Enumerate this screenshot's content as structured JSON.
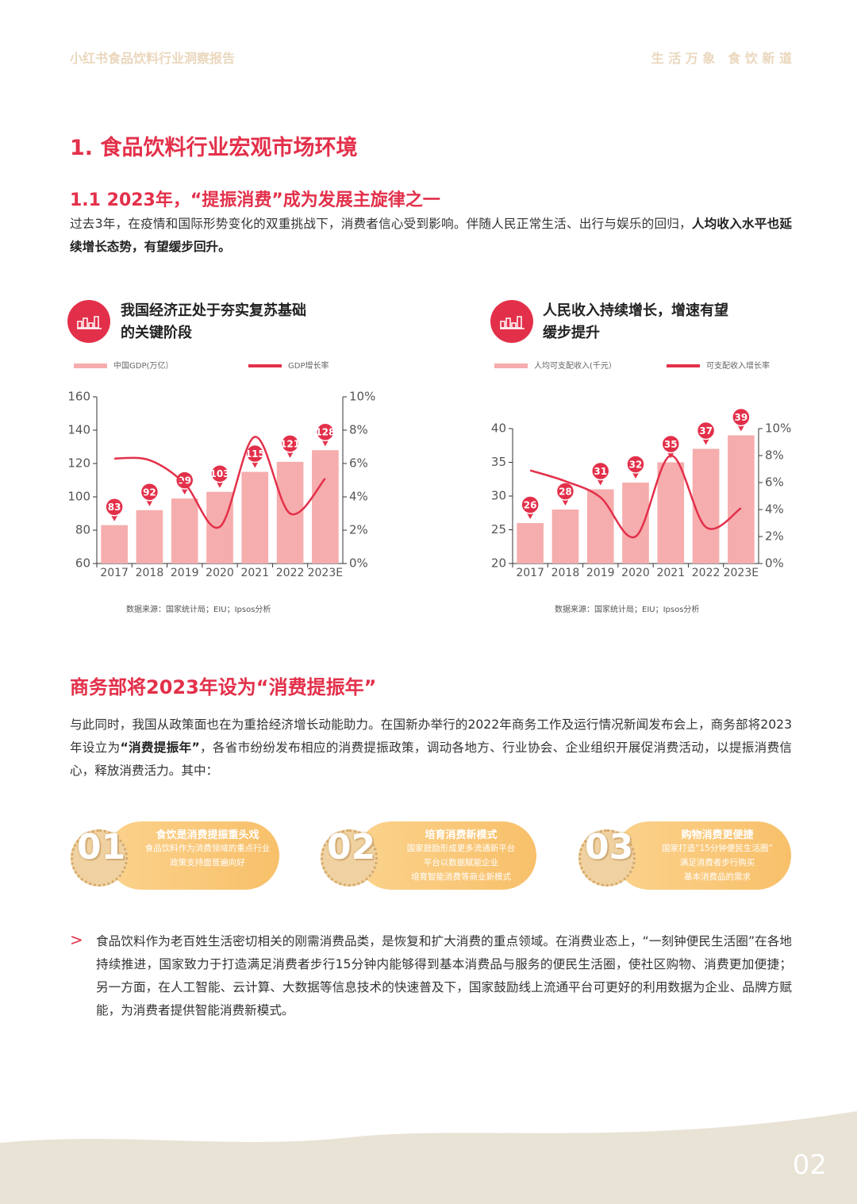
{
  "header": {
    "left": "小红书食品饮料行业洞察报告",
    "right": "生 活 万 象　食 饮 新 道"
  },
  "section_title": "1. 食品饮料行业宏观市场环境",
  "subsection_title": "1.1 2023年，“提振消费”成为发展主旋律之一",
  "intro": {
    "text": "过去3年，在疫情和国际形势变化的双重挑战下，消费者信心受到影响。伴随人民正常生活、出行与娱乐的回归，",
    "bold": "人均收入水平也延续增长态势，有望缓步回升。"
  },
  "chart_data": [
    {
      "type": "bar",
      "title": [
        "我国经济正处于夯实复苏基础",
        "的关键阶段"
      ],
      "categories": [
        "2017",
        "2018",
        "2019",
        "2020",
        "2021",
        "2022",
        "2023E"
      ],
      "series": [
        {
          "name": "中国GDP(万亿）",
          "color": "#f6adad",
          "values": [
            83,
            92,
            99,
            103,
            115,
            121,
            128
          ]
        },
        {
          "name": "GDP增长率",
          "color": "#e3304a",
          "type": "line",
          "axis": "y2",
          "values": [
            6.3,
            6.2,
            4.8,
            2.2,
            7.6,
            3.0,
            5.1
          ]
        }
      ],
      "ylim": [
        60,
        160
      ],
      "yticks": [
        60,
        80,
        100,
        120,
        140,
        160
      ],
      "y2lim": [
        0,
        10
      ],
      "y2ticks": [
        {
          "value": 0,
          "label": "0%"
        },
        {
          "value": 2,
          "label": "2%"
        },
        {
          "value": 4,
          "label": "4%"
        },
        {
          "value": 6,
          "label": "6%"
        },
        {
          "value": 8,
          "label": "8%"
        },
        {
          "value": 10,
          "label": "10%"
        }
      ],
      "label_color": "#e3304a",
      "source": "数据来源：国家统计局；EIU；Ipsos分析"
    },
    {
      "type": "bar",
      "title": [
        "人民收入持续增长，增速有望",
        "缓步提升"
      ],
      "categories": [
        "2017",
        "2018",
        "2019",
        "2020",
        "2021",
        "2022",
        "2023E"
      ],
      "series": [
        {
          "name": "人均可支配收入(千元）",
          "color": "#f6adad",
          "values": [
            26,
            28,
            31,
            32,
            35,
            37,
            39
          ]
        },
        {
          "name": "可支配收入增长率",
          "color": "#e3304a",
          "type": "line",
          "axis": "y2",
          "values": [
            6.9,
            6.1,
            4.9,
            2.0,
            8.0,
            2.7,
            4.1
          ]
        }
      ],
      "ylim": [
        20,
        40
      ],
      "yticks": [
        20,
        25,
        30,
        35,
        40
      ],
      "y2lim": [
        0,
        10
      ],
      "y2ticks": [
        {
          "value": 0,
          "label": "0%"
        },
        {
          "value": 2,
          "label": "2%"
        },
        {
          "value": 4,
          "label": "4%"
        },
        {
          "value": 6,
          "label": "6%"
        },
        {
          "value": 8,
          "label": "8%"
        },
        {
          "value": 10,
          "label": "10%"
        }
      ],
      "label_color": "#e3304a",
      "source": "数据来源：国家统计局；EIU；Ipsos分析"
    }
  ],
  "policy_title": "商务部将2023年设为“消费提振年”",
  "policy_text": {
    "before": "与此同时，我国从政策面也在为重拾经济增长动能助力。在国新办举行的2022年商务工作及运行情况新闻发布会上，商务部将2023年设立为",
    "bold": "“消费提振年”",
    "after": "，各省市纷纷发布相应的消费提振政策，调动各地方、行业协会、企业组织开展促消费活动，以提振消费信心，释放消费活力。其中："
  },
  "cards": [
    {
      "number": "01",
      "title": "食饮是消费提振重头戏",
      "lines": [
        "食品饮料作为消费领域的重点行业",
        "政策支持面普遍向好"
      ]
    },
    {
      "number": "02",
      "title": "培育消费新模式",
      "lines": [
        "国家鼓励形成更多流通新平台",
        "平台以数据赋能企业",
        "培育智能消费等商业新模式"
      ]
    },
    {
      "number": "03",
      "title": "购物消费更便捷",
      "lines": [
        "国家打造“15分钟便民生活圈”",
        "满足消费者步行购买",
        "基本消费品的需求"
      ]
    }
  ],
  "bullet_text": "食品饮料作为老百姓生活密切相关的刚需消费品类，是恢复和扩大消费的重点领域。在消费业态上，“一刻钟便民生活圈”在各地持续推进，国家致力于打造满足消费者步行15分钟内能够得到基本消费品与服务的便民生活圈，使社区购物、消费更加便捷；另一方面，在人工智能、云计算、大数据等信息技术的快速普及下，国家鼓励线上流通平台可更好的利用数据为企业、品牌方赋能，为消费者提供智能消费新模式。",
  "page_number": "02"
}
